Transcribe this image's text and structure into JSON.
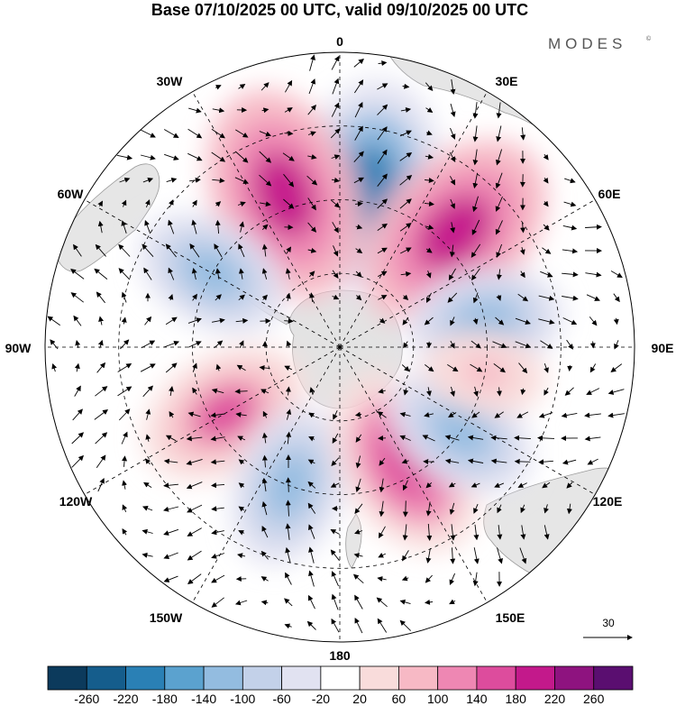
{
  "title": "Base 07/10/2025 00 UTC, valid 09/10/2025 00 UTC",
  "brand": {
    "name": "MODES",
    "mark": "©"
  },
  "map": {
    "projection": "south-polar-stereographic",
    "longitude_labels": [
      "0",
      "30E",
      "60E",
      "90E",
      "120E",
      "150E",
      "180",
      "150W",
      "120W",
      "90W",
      "60W",
      "30W"
    ],
    "anomaly_centers": [
      {
        "lon": 10,
        "sign": "negative",
        "peak": -240
      },
      {
        "lon": 45,
        "sign": "positive",
        "peak": 240
      },
      {
        "lon": 340,
        "sign": "positive",
        "peak": 240
      },
      {
        "lon": 80,
        "sign": "negative",
        "peak": -140
      },
      {
        "lon": 300,
        "sign": "negative",
        "peak": -140
      },
      {
        "lon": 240,
        "sign": "positive",
        "peak": 170
      },
      {
        "lon": 200,
        "sign": "negative",
        "peak": -150
      },
      {
        "lon": 150,
        "sign": "positive",
        "peak": 200
      },
      {
        "lon": 125,
        "sign": "negative",
        "peak": -140
      },
      {
        "lon": 100,
        "sign": "positive",
        "peak": 80
      }
    ],
    "wind_reference_vector": {
      "label": "30"
    }
  },
  "colorbar": {
    "tick_labels": [
      "-260",
      "-220",
      "-180",
      "-140",
      "-100",
      "-60",
      "-20",
      "20",
      "60",
      "100",
      "140",
      "180",
      "220",
      "260"
    ],
    "colors": [
      "#0c3a5c",
      "#155d8c",
      "#2a80b5",
      "#5ba2cf",
      "#93bce0",
      "#c3d1e9",
      "#e1e2f1",
      "#ffffff",
      "#f9dcdb",
      "#f7b9c5",
      "#ee87b3",
      "#dd4c9d",
      "#c3198b",
      "#8e137f",
      "#5a0e70"
    ]
  }
}
